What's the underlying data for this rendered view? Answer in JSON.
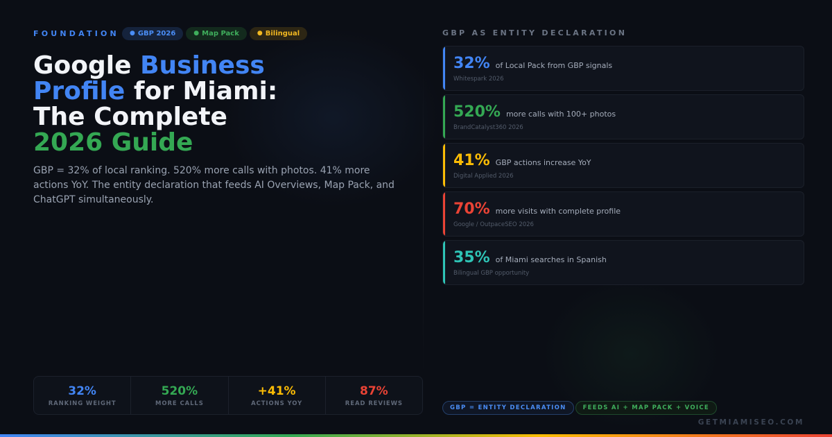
{
  "header": {
    "kicker": "FOUNDATION",
    "pills": [
      {
        "label": "GBP 2026",
        "color": "#4a8df5"
      },
      {
        "label": "Map Pack",
        "color": "#3fae5c"
      },
      {
        "label": "Bilingual",
        "color": "#f2b821"
      }
    ]
  },
  "title": {
    "part1": "Google ",
    "part2": "Business",
    "part3": "Profile",
    "part4": " for Miami:",
    "part5": "The Complete",
    "part6": "2026 Guide"
  },
  "description": "GBP = 32% of local ranking. 520% more calls with photos. 41% more actions YoY. The entity declaration that feeds AI Overviews, Map Pack, and ChatGPT simultaneously.",
  "stats": [
    {
      "value": "32%",
      "label": "RANKING WEIGHT",
      "color": "#4285f4"
    },
    {
      "value": "520%",
      "label": "MORE CALLS",
      "color": "#34a853"
    },
    {
      "value": "+41%",
      "label": "ACTIONS YOY",
      "color": "#fbbc05"
    },
    {
      "value": "87%",
      "label": "READ REVIEWS",
      "color": "#ea4335"
    }
  ],
  "right": {
    "section_title": "GBP AS ENTITY DECLARATION",
    "cards": [
      {
        "value": "32%",
        "text": "of Local Pack from GBP signals",
        "source": "Whitespark 2026",
        "color": "#4285f4"
      },
      {
        "value": "520%",
        "text": "more calls with 100+ photos",
        "source": "BrandCatalyst360 2026",
        "color": "#34a853"
      },
      {
        "value": "41%",
        "text": "GBP actions increase YoY",
        "source": "Digital Applied 2026",
        "color": "#fbbc05"
      },
      {
        "value": "70%",
        "text": "more visits with complete profile",
        "source": "Google / OutpaceSEO 2026",
        "color": "#ea4335"
      },
      {
        "value": "35%",
        "text": "of Miami searches in Spanish",
        "source": "Bilingual GBP opportunity",
        "color": "#2ec4b6"
      }
    ],
    "tags": [
      "GBP = ENTITY DECLARATION",
      "FEEDS AI + MAP PACK + VOICE"
    ]
  },
  "footer": {
    "domain": "GETMIAMISEO.COM"
  }
}
